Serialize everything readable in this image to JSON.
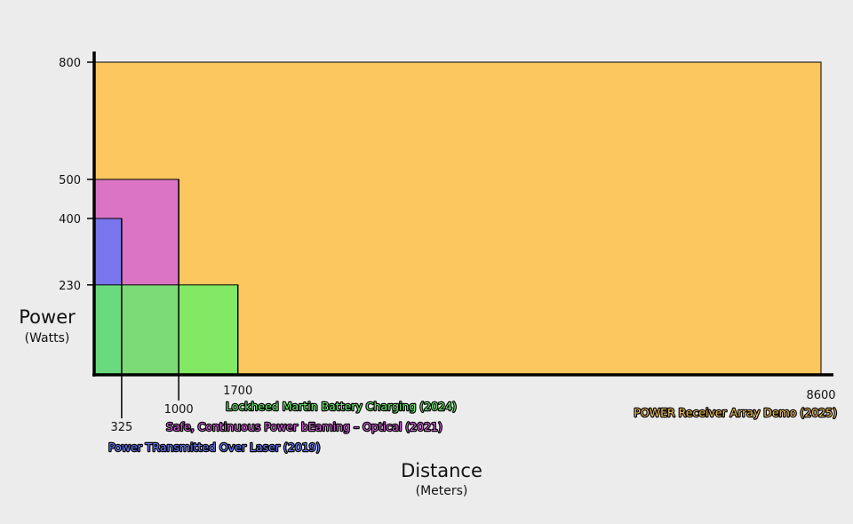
{
  "chart_data": {
    "type": "area",
    "ylabel": "Power",
    "ylabel_unit": "(Watts)",
    "xlabel": "Distance",
    "xlabel_unit": "(Meters)",
    "xlim": [
      0,
      8600
    ],
    "ylim": [
      0,
      800
    ],
    "y_ticks": [
      "800",
      "500",
      "400",
      "230"
    ],
    "x_ticks": [
      "325",
      "1000",
      "1700",
      "8600"
    ],
    "grid": false,
    "series": [
      {
        "name": "POWER Receiver Array Demo (2025)",
        "distance": 8600,
        "power": 800,
        "color": "#fbc75e",
        "label_color": "#f7c45a"
      },
      {
        "name": "Safe, Continuous Power bEaming – Optical (2021)",
        "distance": 1000,
        "power": 500,
        "color": "#d261d9",
        "label_color": "#d45fdc"
      },
      {
        "name": "Power TRansmitted Over Laser (2019)",
        "distance": 325,
        "power": 400,
        "color": "#6375f6",
        "label_color": "#6b7cff"
      },
      {
        "name": "Lockheed Martin Battery Charging (2024)",
        "distance": 1700,
        "power": 230,
        "color": "#66f066",
        "label_color": "#6df06d"
      }
    ]
  }
}
